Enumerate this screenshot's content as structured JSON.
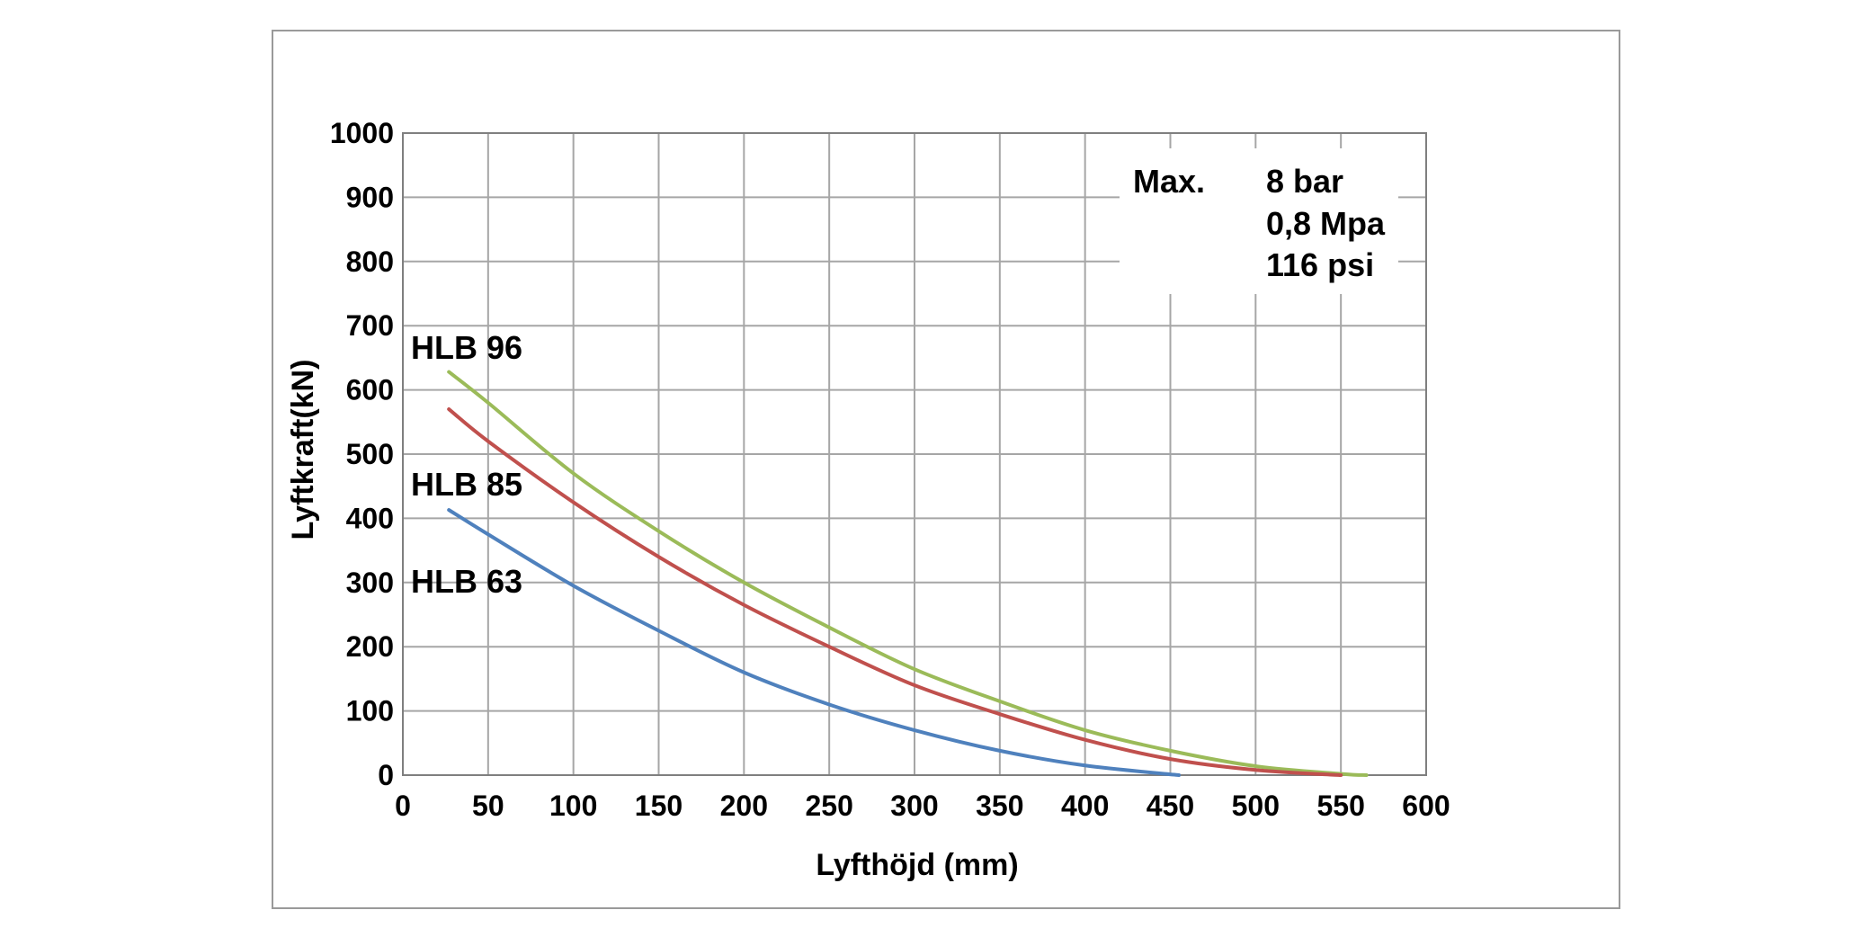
{
  "chart_data": {
    "type": "line",
    "title": "",
    "xlabel": "Lyfthöjd (mm)",
    "ylabel": "Lyftkraft(kN)",
    "xlim": [
      0,
      600
    ],
    "ylim": [
      0,
      1000
    ],
    "x_ticks": [
      "0",
      "50",
      "100",
      "150",
      "200",
      "250",
      "300",
      "350",
      "400",
      "450",
      "500",
      "550",
      "600"
    ],
    "y_ticks": [
      "0",
      "100",
      "200",
      "300",
      "400",
      "500",
      "600",
      "700",
      "800",
      "900",
      "1000"
    ],
    "grid": true,
    "series": [
      {
        "name": "HLB 96",
        "color": "#9bbb59",
        "x": [
          27,
          50,
          100,
          150,
          200,
          250,
          300,
          350,
          400,
          450,
          500,
          550,
          565
        ],
        "y": [
          628,
          580,
          470,
          380,
          300,
          230,
          165,
          115,
          70,
          38,
          14,
          2,
          0
        ]
      },
      {
        "name": "HLB 85",
        "color": "#c0504d",
        "x": [
          27,
          50,
          100,
          150,
          200,
          250,
          300,
          350,
          400,
          450,
          500,
          550
        ],
        "y": [
          570,
          520,
          425,
          340,
          265,
          200,
          140,
          95,
          55,
          25,
          8,
          0
        ]
      },
      {
        "name": "HLB 63",
        "color": "#4f81bd",
        "x": [
          27,
          50,
          100,
          150,
          200,
          250,
          300,
          350,
          400,
          455
        ],
        "y": [
          413,
          375,
          295,
          225,
          160,
          110,
          70,
          38,
          15,
          0
        ]
      }
    ],
    "annotation": {
      "label": "Max.",
      "lines": [
        "8 bar",
        "0,8 Mpa",
        "116 psi"
      ]
    }
  }
}
